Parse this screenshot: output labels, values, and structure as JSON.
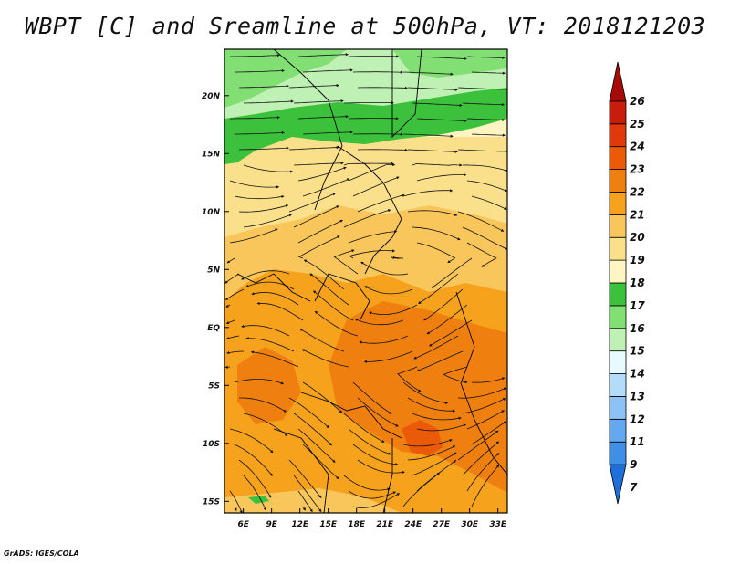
{
  "title": "WBPT [C] and Sreamline at 500hPa, VT: 2018121203",
  "credit": "GrADS: IGES/COLA",
  "map": {
    "lon_range": [
      4,
      34
    ],
    "lat_range": [
      -16,
      24
    ],
    "lon_ticks": [
      "6E",
      "9E",
      "12E",
      "15E",
      "18E",
      "21E",
      "24E",
      "27E",
      "30E",
      "33E"
    ],
    "lat_ticks": [
      "20N",
      "15N",
      "10N",
      "5N",
      "EQ",
      "5S",
      "10S",
      "15S"
    ]
  },
  "colorbar": {
    "labels": [
      "7",
      "9",
      "11",
      "12",
      "13",
      "14",
      "15",
      "16",
      "17",
      "18",
      "19",
      "20",
      "21",
      "22",
      "23",
      "24",
      "25",
      "26"
    ],
    "colors": [
      "#1e6fd9",
      "#3f8fe6",
      "#64a9ef",
      "#8cc2f5",
      "#b3dbfa",
      "#e6fbff",
      "#bff0b4",
      "#82df74",
      "#3cc13c",
      "#fff5c2",
      "#fbe08c",
      "#f9c65c",
      "#f6a21c",
      "#ef8010",
      "#ea5a08",
      "#e03a0a",
      "#c81c0c",
      "#a80a08"
    ]
  },
  "fill_colors": {
    "green_dark": "#3cc13c",
    "green_mid": "#82df74",
    "green_light": "#bff0b4",
    "pale": "#fff5c2",
    "yellow": "#fbe08c",
    "light_orange": "#f9c65c",
    "orange": "#f6a21c",
    "dark_orange": "#ef8010",
    "red_orange": "#ea5a08"
  }
}
